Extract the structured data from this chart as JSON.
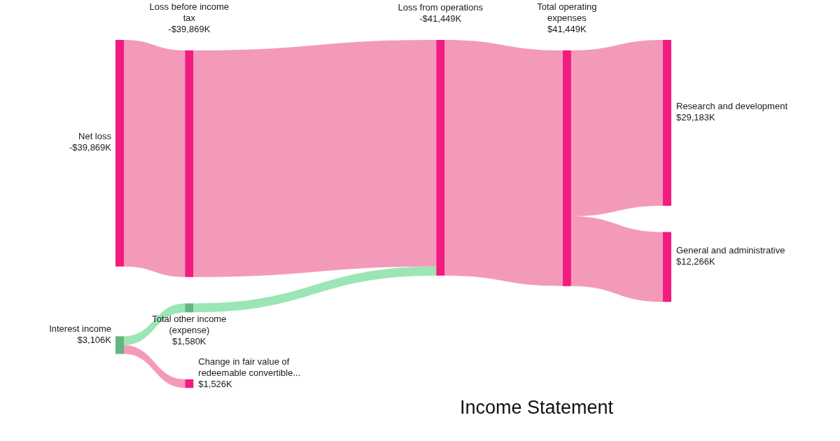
{
  "chart_data": {
    "type": "other",
    "title": "Income Statement",
    "categories": [
      "Net loss",
      "Interest income",
      "Loss before income tax",
      "Total other income (expense)",
      "Change in fair value of redeemable convertible...",
      "Loss from operations",
      "Total operating expenses",
      "Research and development",
      "General and administrative"
    ],
    "values": [
      -39869,
      3106,
      -39869,
      1580,
      1526,
      -41449,
      41449,
      29183,
      12266
    ],
    "value_labels": [
      "-$39,869K",
      "$3,106K",
      "-$39,869K",
      "$1,580K",
      "$1,526K",
      "-$41,449K",
      "$41,449K",
      "$29,183K",
      "$12,266K"
    ],
    "colors": [
      "#f21b7f",
      "#66b47f",
      "#f21b7f",
      "#66b47f",
      "#f21b7f",
      "#f21b7f",
      "#f21b7f",
      "#f21b7f",
      "#f21b7f"
    ],
    "series": [
      {
        "color": "#f39abb",
        "x": [
          "Net loss",
          "Loss before income tax"
        ],
        "values": [
          null,
          null
        ]
      },
      {
        "color": "#f39abb",
        "x": [
          "Loss before income tax",
          "Loss from operations"
        ],
        "values": [
          null,
          null
        ]
      },
      {
        "color": "#9be6b4",
        "x": [
          "Interest income",
          "Total other income (expense)"
        ],
        "values": [
          null,
          null
        ]
      },
      {
        "color": "#9be6b4",
        "x": [
          "Total other income (expense)",
          "Loss from operations"
        ],
        "values": [
          null,
          null
        ]
      },
      {
        "color": "#f39abb",
        "x": [
          "Interest income",
          "Change in fair value of redeemable convertible..."
        ],
        "values": [
          null,
          null
        ]
      },
      {
        "color": "#f39abb",
        "x": [
          "Loss from operations",
          "Total operating expenses"
        ],
        "values": [
          null,
          null
        ]
      },
      {
        "color": "#f39abb",
        "x": [
          "Total operating expenses",
          "Research and development"
        ],
        "values": [
          null,
          null
        ]
      },
      {
        "color": "#f39abb",
        "x": [
          "Total operating expenses",
          "General and administrative"
        ],
        "values": [
          null,
          null
        ]
      }
    ]
  }
}
